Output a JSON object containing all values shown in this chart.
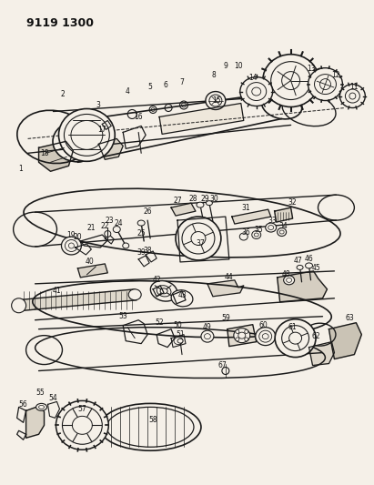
{
  "title": "9119 1300",
  "bg": "#f5f0e8",
  "lc": "#1a1a1a",
  "fig_w": 4.11,
  "fig_h": 5.33,
  "dpi": 100
}
